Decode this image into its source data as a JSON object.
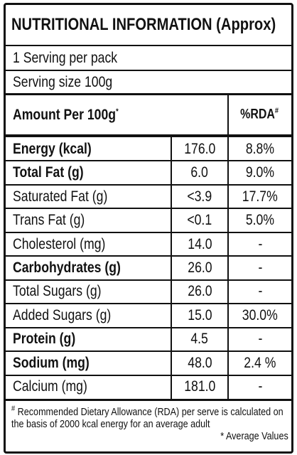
{
  "title": "NUTRITIONAL INFORMATION (Approx)",
  "servings": [
    "1 Serving per pack",
    "Serving size 100g"
  ],
  "header": {
    "label": "Amount Per 100g",
    "label_marker": "*",
    "rda": "%RDA",
    "rda_marker": "#"
  },
  "rows": [
    {
      "name": "Energy (kcal)",
      "value": "176.0",
      "rda": "8.8%",
      "bold": true
    },
    {
      "name": "Total Fat (g)",
      "value": "6.0",
      "rda": "9.0%",
      "bold": true
    },
    {
      "name": "Saturated Fat (g)",
      "value": "<3.9",
      "rda": "17.7%",
      "bold": false
    },
    {
      "name": "Trans Fat (g)",
      "value": "<0.1",
      "rda": "5.0%",
      "bold": false
    },
    {
      "name": "Cholesterol (mg)",
      "value": "14.0",
      "rda": "-",
      "bold": false
    },
    {
      "name": "Carbohydrates (g)",
      "value": "26.0",
      "rda": "-",
      "bold": true
    },
    {
      "name": "Total Sugars (g)",
      "value": "26.0",
      "rda": "-",
      "bold": false
    },
    {
      "name": "Added Sugars (g)",
      "value": "15.0",
      "rda": "30.0%",
      "bold": false
    },
    {
      "name": "Protein (g)",
      "value": "4.5",
      "rda": "-",
      "bold": true
    },
    {
      "name": "Sodium (mg)",
      "value": "48.0",
      "rda": "2.4 %",
      "bold": true
    },
    {
      "name": "Calcium (mg)",
      "value": "181.0",
      "rda": "-",
      "bold": false
    }
  ],
  "footnote": {
    "marker": "#",
    "text": "Recommended Dietary Allowance (RDA) per serve is calculated  on the basis of 2000 kcal energy for an average adult",
    "note": "* Average Values"
  }
}
